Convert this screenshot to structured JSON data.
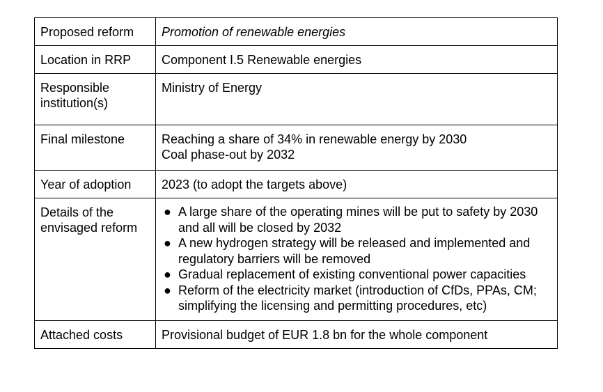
{
  "table": {
    "rows": [
      {
        "label": "Proposed reform",
        "value": "Promotion of renewable energies"
      },
      {
        "label": "Location in RRP",
        "value": "Component I.5 Renewable energies"
      },
      {
        "label": [
          "Responsible",
          "institution(s)"
        ],
        "value": "Ministry of Energy"
      },
      {
        "label": "Final milestone",
        "value": [
          "Reaching a share of 34% in renewable energy by 2030",
          "Coal phase-out by 2032"
        ]
      },
      {
        "label": "Year of adoption",
        "value": "2023 (to adopt the targets above)"
      },
      {
        "label": [
          "Details of the",
          "envisaged reform"
        ],
        "bullets": [
          "A large share of the operating mines will be put to safety by 2030 and all will be closed by 2032",
          "A new hydrogen strategy will be released and implemented and regulatory barriers will be removed",
          "Gradual replacement of existing conventional power capacities",
          "Reform of the electricity market (introduction of CfDs, PPAs, CM; simplifying the licensing and permitting procedures, etc)"
        ]
      },
      {
        "label": "Attached costs",
        "value": "Provisional budget of EUR 1.8 bn for the whole component"
      }
    ]
  }
}
